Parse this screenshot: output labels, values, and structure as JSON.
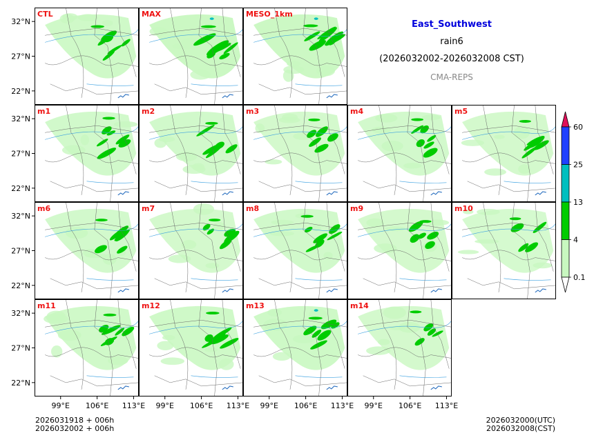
{
  "chart_data": {
    "type": "heatmap",
    "title": "East_Southwest",
    "variable": "rain6",
    "period": "(2026032002-2026032008 CST)",
    "model": "CMA-REPS",
    "x_ticks": [
      "99°E",
      "106°E",
      "113°E"
    ],
    "y_ticks": [
      "32°N",
      "27°N",
      "22°N"
    ],
    "lon_range": [
      94,
      114
    ],
    "lat_range": [
      20,
      34
    ],
    "colorbar": {
      "levels": [
        "0.1",
        "4",
        "13",
        "25",
        "60"
      ],
      "colors": [
        "#c8f8c0",
        "#00cc00",
        "#00bfbf",
        "#2040ff",
        "#e0105a"
      ]
    },
    "panels": [
      {
        "name": "CTL",
        "intensity": 0.8
      },
      {
        "name": "MAX",
        "intensity": 1.0
      },
      {
        "name": "MESO_1km",
        "intensity": 0.95
      },
      {
        "name": "m1",
        "intensity": 0.7
      },
      {
        "name": "m2",
        "intensity": 0.7
      },
      {
        "name": "m3",
        "intensity": 0.6
      },
      {
        "name": "m4",
        "intensity": 0.65
      },
      {
        "name": "m5",
        "intensity": 0.6
      },
      {
        "name": "m6",
        "intensity": 0.65
      },
      {
        "name": "m7",
        "intensity": 0.6
      },
      {
        "name": "m8",
        "intensity": 0.7
      },
      {
        "name": "m9",
        "intensity": 0.6
      },
      {
        "name": "m10",
        "intensity": 0.55
      },
      {
        "name": "m11",
        "intensity": 0.75
      },
      {
        "name": "m12",
        "intensity": 0.8
      },
      {
        "name": "m13",
        "intensity": 0.85
      },
      {
        "name": "m14",
        "intensity": 0.6
      }
    ]
  },
  "footer": {
    "init_utc": "2026031918  +  006h",
    "init_cst": "2026032002  +  006h",
    "valid_utc": "2026032000(UTC)",
    "valid_cst": "2026032008(CST)"
  }
}
